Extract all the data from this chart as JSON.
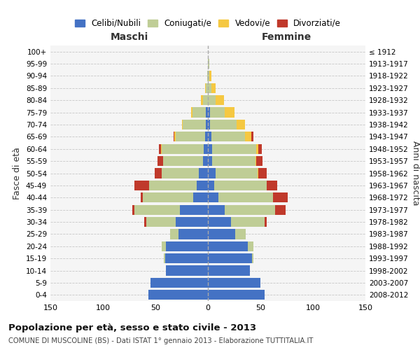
{
  "age_groups": [
    "0-4",
    "5-9",
    "10-14",
    "15-19",
    "20-24",
    "25-29",
    "30-34",
    "35-39",
    "40-44",
    "45-49",
    "50-54",
    "55-59",
    "60-64",
    "65-69",
    "70-74",
    "75-79",
    "80-84",
    "85-89",
    "90-94",
    "95-99",
    "100+"
  ],
  "birth_years": [
    "2008-2012",
    "2003-2007",
    "1998-2002",
    "1993-1997",
    "1988-1992",
    "1983-1987",
    "1978-1982",
    "1973-1977",
    "1968-1972",
    "1963-1967",
    "1958-1962",
    "1953-1957",
    "1948-1952",
    "1943-1947",
    "1938-1942",
    "1933-1937",
    "1928-1932",
    "1923-1927",
    "1918-1922",
    "1913-1917",
    "≤ 1912"
  ],
  "males": {
    "celibi": [
      57,
      55,
      40,
      41,
      40,
      28,
      31,
      27,
      14,
      11,
      9,
      5,
      4,
      3,
      2,
      2,
      0,
      0,
      0,
      0,
      0
    ],
    "coniugati": [
      0,
      0,
      0,
      1,
      4,
      8,
      28,
      43,
      48,
      45,
      35,
      38,
      40,
      28,
      22,
      13,
      5,
      2,
      1,
      0,
      0
    ],
    "vedovi": [
      0,
      0,
      0,
      0,
      0,
      0,
      0,
      0,
      0,
      0,
      0,
      0,
      1,
      1,
      1,
      1,
      2,
      1,
      0,
      0,
      0
    ],
    "divorziati": [
      0,
      0,
      0,
      0,
      0,
      0,
      2,
      2,
      2,
      14,
      7,
      5,
      2,
      1,
      0,
      0,
      0,
      0,
      0,
      0,
      0
    ]
  },
  "females": {
    "nubili": [
      54,
      50,
      40,
      42,
      38,
      26,
      22,
      16,
      10,
      6,
      7,
      4,
      4,
      3,
      2,
      2,
      0,
      0,
      0,
      0,
      0
    ],
    "coniugate": [
      0,
      0,
      0,
      1,
      5,
      10,
      32,
      48,
      52,
      50,
      40,
      41,
      42,
      32,
      25,
      14,
      7,
      3,
      1,
      1,
      0
    ],
    "vedove": [
      0,
      0,
      0,
      0,
      0,
      0,
      0,
      0,
      0,
      0,
      1,
      1,
      2,
      6,
      8,
      9,
      8,
      4,
      2,
      0,
      0
    ],
    "divorziate": [
      0,
      0,
      0,
      0,
      0,
      0,
      2,
      10,
      14,
      10,
      8,
      6,
      3,
      2,
      0,
      0,
      0,
      0,
      0,
      0,
      0
    ]
  },
  "colors": {
    "celibi": "#4472C4",
    "coniugati": "#BFCD96",
    "vedovi": "#F5C842",
    "divorziati": "#C0392B"
  },
  "title": "Popolazione per età, sesso e stato civile - 2013",
  "subtitle": "COMUNE DI MUSCOLINE (BS) - Dati ISTAT 1° gennaio 2013 - Elaborazione TUTTITALIA.IT",
  "xlabel_left": "Maschi",
  "xlabel_right": "Femmine",
  "ylabel_left": "Fasce di età",
  "ylabel_right": "Anni di nascita",
  "xlim": 150,
  "legend_labels": [
    "Celibi/Nubili",
    "Coniugati/e",
    "Vedovi/e",
    "Divorziati/e"
  ],
  "bg_color": "#FFFFFF",
  "plot_bg_color": "#F5F5F5"
}
